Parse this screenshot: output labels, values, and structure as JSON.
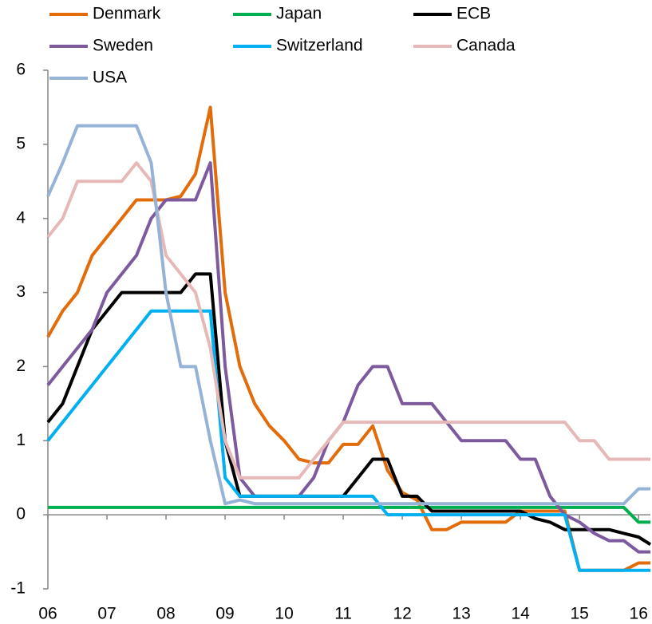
{
  "chart_data": {
    "type": "line",
    "x": [
      6,
      6.25,
      6.5,
      6.75,
      7,
      7.25,
      7.5,
      7.75,
      8,
      8.25,
      8.5,
      8.75,
      9,
      9.25,
      9.5,
      9.75,
      10,
      10.25,
      10.5,
      10.75,
      11,
      11.25,
      11.5,
      11.75,
      12,
      12.25,
      12.5,
      12.75,
      13,
      13.25,
      13.5,
      13.75,
      14,
      14.25,
      14.5,
      14.75,
      15,
      15.25,
      15.5,
      15.75,
      16,
      16.2
    ],
    "series": [
      {
        "name": "Denmark",
        "color": "#e36c0a",
        "values": [
          2.4,
          2.75,
          3.0,
          3.5,
          3.75,
          4.0,
          4.25,
          4.25,
          4.25,
          4.3,
          4.6,
          5.5,
          3.0,
          2.0,
          1.5,
          1.2,
          1.0,
          0.75,
          0.7,
          0.7,
          0.95,
          0.95,
          1.2,
          0.6,
          0.3,
          0.2,
          -0.2,
          -0.2,
          -0.1,
          -0.1,
          -0.1,
          -0.1,
          0.05,
          0.05,
          0.05,
          0.05,
          -0.75,
          -0.75,
          -0.75,
          -0.75,
          -0.65,
          -0.65
        ]
      },
      {
        "name": "Japan",
        "color": "#00b050",
        "values": [
          0.1,
          0.1,
          0.1,
          0.1,
          0.1,
          0.1,
          0.1,
          0.1,
          0.1,
          0.1,
          0.1,
          0.1,
          0.1,
          0.1,
          0.1,
          0.1,
          0.1,
          0.1,
          0.1,
          0.1,
          0.1,
          0.1,
          0.1,
          0.1,
          0.1,
          0.1,
          0.1,
          0.1,
          0.1,
          0.1,
          0.1,
          0.1,
          0.1,
          0.1,
          0.1,
          0.1,
          0.1,
          0.1,
          0.1,
          0.1,
          -0.1,
          -0.1
        ]
      },
      {
        "name": "ECB",
        "color": "#000000",
        "values": [
          1.25,
          1.5,
          2.0,
          2.5,
          2.75,
          3.0,
          3.0,
          3.0,
          3.0,
          3.0,
          3.25,
          3.25,
          1.0,
          0.25,
          0.25,
          0.25,
          0.25,
          0.25,
          0.25,
          0.25,
          0.25,
          0.5,
          0.75,
          0.75,
          0.25,
          0.25,
          0.05,
          0.05,
          0.05,
          0.05,
          0.05,
          0.05,
          0.05,
          -0.05,
          -0.1,
          -0.2,
          -0.2,
          -0.2,
          -0.2,
          -0.25,
          -0.3,
          -0.4
        ]
      },
      {
        "name": "Sweden",
        "color": "#7d5a9e",
        "values": [
          1.75,
          2.0,
          2.25,
          2.5,
          3.0,
          3.25,
          3.5,
          4.0,
          4.25,
          4.25,
          4.25,
          4.75,
          2.0,
          0.5,
          0.25,
          0.25,
          0.25,
          0.25,
          0.5,
          1.0,
          1.25,
          1.75,
          2.0,
          2.0,
          1.5,
          1.5,
          1.5,
          1.25,
          1.0,
          1.0,
          1.0,
          1.0,
          0.75,
          0.75,
          0.25,
          0.0,
          -0.1,
          -0.25,
          -0.35,
          -0.35,
          -0.5,
          -0.5
        ]
      },
      {
        "name": "Switzerland",
        "color": "#00b0f0",
        "values": [
          1.0,
          1.25,
          1.5,
          1.75,
          2.0,
          2.25,
          2.5,
          2.75,
          2.75,
          2.75,
          2.75,
          2.75,
          0.5,
          0.25,
          0.25,
          0.25,
          0.25,
          0.25,
          0.25,
          0.25,
          0.25,
          0.25,
          0.25,
          0.0,
          0.0,
          0.0,
          0.0,
          0.0,
          0.0,
          0.0,
          0.0,
          0.0,
          0.0,
          0.0,
          0.0,
          0.0,
          -0.75,
          -0.75,
          -0.75,
          -0.75,
          -0.75,
          -0.75
        ]
      },
      {
        "name": "Canada",
        "color": "#e6b9b8",
        "values": [
          3.75,
          4.0,
          4.5,
          4.5,
          4.5,
          4.5,
          4.75,
          4.5,
          3.5,
          3.25,
          3.0,
          2.25,
          1.0,
          0.5,
          0.5,
          0.5,
          0.5,
          0.5,
          0.75,
          1.0,
          1.25,
          1.25,
          1.25,
          1.25,
          1.25,
          1.25,
          1.25,
          1.25,
          1.25,
          1.25,
          1.25,
          1.25,
          1.25,
          1.25,
          1.25,
          1.25,
          1.0,
          1.0,
          0.75,
          0.75,
          0.75,
          0.75
        ]
      },
      {
        "name": "USA",
        "color": "#95b3d7",
        "values": [
          4.3,
          4.75,
          5.25,
          5.25,
          5.25,
          5.25,
          5.25,
          4.75,
          3.0,
          2.0,
          2.0,
          1.0,
          0.15,
          0.2,
          0.15,
          0.15,
          0.15,
          0.15,
          0.15,
          0.15,
          0.15,
          0.15,
          0.15,
          0.15,
          0.15,
          0.15,
          0.15,
          0.15,
          0.15,
          0.15,
          0.15,
          0.15,
          0.15,
          0.15,
          0.15,
          0.15,
          0.15,
          0.15,
          0.15,
          0.15,
          0.35,
          0.35
        ]
      }
    ],
    "xlim": [
      6,
      16.2
    ],
    "xticks": [
      {
        "value": 6,
        "label": "06"
      },
      {
        "value": 7,
        "label": "07"
      },
      {
        "value": 8,
        "label": "08"
      },
      {
        "value": 9,
        "label": "09"
      },
      {
        "value": 10,
        "label": "10"
      },
      {
        "value": 11,
        "label": "11"
      },
      {
        "value": 12,
        "label": "12"
      },
      {
        "value": 13,
        "label": "13"
      },
      {
        "value": 14,
        "label": "14"
      },
      {
        "value": 15,
        "label": "15"
      },
      {
        "value": 16,
        "label": "16"
      }
    ],
    "ylim": [
      -1,
      6
    ],
    "yticks": [
      -1,
      0,
      1,
      2,
      3,
      4,
      5,
      6
    ],
    "grid": false
  }
}
